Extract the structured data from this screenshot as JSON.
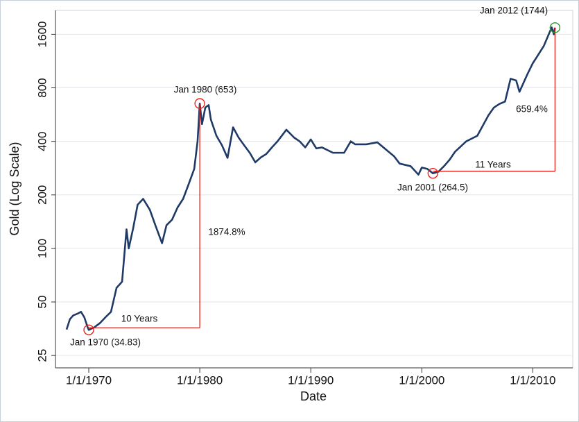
{
  "chart_data": {
    "type": "line",
    "y_label": "Gold (Log Scale)",
    "x_label": "Date",
    "log_scale_y": true,
    "grid": true,
    "color": "#1f3a66",
    "xlim": [
      1967.0,
      2013.6
    ],
    "ylim": [
      21.3,
      2180
    ],
    "xticks": [
      {
        "value": 1970,
        "label": "1/1/1970"
      },
      {
        "value": 1980,
        "label": "1/1/1980"
      },
      {
        "value": 1990,
        "label": "1/1/1990"
      },
      {
        "value": 2000,
        "label": "1/1/2000"
      },
      {
        "value": 2010,
        "label": "1/1/2010"
      }
    ],
    "yticks": [
      25,
      50,
      100,
      200,
      400,
      800,
      1600
    ],
    "x": [
      1968.0,
      1968.3,
      1968.6,
      1969.0,
      1969.3,
      1969.6,
      1969.9,
      1970.0,
      1970.5,
      1971.0,
      1971.5,
      1972.0,
      1972.5,
      1973.0,
      1973.4,
      1973.6,
      1974.0,
      1974.4,
      1974.9,
      1975.5,
      1976.0,
      1976.6,
      1977.0,
      1977.5,
      1978.0,
      1978.5,
      1979.0,
      1979.5,
      1979.8,
      1980.0,
      1980.2,
      1980.5,
      1980.8,
      1981.0,
      1981.5,
      1982.0,
      1982.5,
      1983.0,
      1983.5,
      1984.0,
      1984.5,
      1985.0,
      1985.5,
      1986.0,
      1986.5,
      1987.0,
      1987.8,
      1988.5,
      1989.0,
      1989.5,
      1990.0,
      1990.5,
      1991.0,
      1992.0,
      1993.0,
      1993.6,
      1994.0,
      1995.0,
      1996.0,
      1997.0,
      1997.5,
      1998.0,
      1999.0,
      1999.7,
      2000.0,
      2000.5,
      2001.0,
      2001.5,
      2002.0,
      2002.5,
      2003.0,
      2004.0,
      2005.0,
      2006.0,
      2006.5,
      2007.0,
      2007.5,
      2008.0,
      2008.5,
      2008.8,
      2009.5,
      2010.0,
      2010.5,
      2011.0,
      2011.7,
      2011.9,
      2012.0
    ],
    "values": [
      35,
      40,
      42,
      43,
      44,
      41,
      36,
      34.83,
      36,
      38,
      41,
      44,
      60,
      65,
      128,
      100,
      130,
      176,
      190,
      165,
      135,
      107,
      135,
      145,
      170,
      190,
      230,
      280,
      400,
      653,
      500,
      620,
      640,
      530,
      430,
      380,
      323,
      480,
      420,
      380,
      345,
      305,
      325,
      340,
      370,
      400,
      465,
      420,
      400,
      370,
      410,
      365,
      370,
      345,
      345,
      400,
      385,
      385,
      395,
      350,
      330,
      300,
      290,
      260,
      285,
      280,
      264.5,
      270,
      290,
      315,
      350,
      400,
      430,
      560,
      620,
      650,
      670,
      900,
      880,
      760,
      950,
      1100,
      1230,
      1380,
      1750,
      1600,
      1744
    ],
    "points": [
      {
        "label": "Jan 1970 (34.83)",
        "x": 1970,
        "y": 34.83,
        "color": "#e8221b"
      },
      {
        "label": "Jan 1980 (653)",
        "x": 1980,
        "y": 653,
        "color": "#e8221b"
      },
      {
        "label": "Jan 2001 (264.5)",
        "x": 2001,
        "y": 264.5,
        "color": "#e8221b"
      },
      {
        "label": "Jan 2012 (1744)",
        "x": 2012,
        "y": 1744,
        "color": "#2e9a2e"
      }
    ],
    "connector_color": "#e8221b",
    "annotations": [
      "10 Years",
      "1874.8%",
      "11 Years",
      "659.4%"
    ]
  }
}
